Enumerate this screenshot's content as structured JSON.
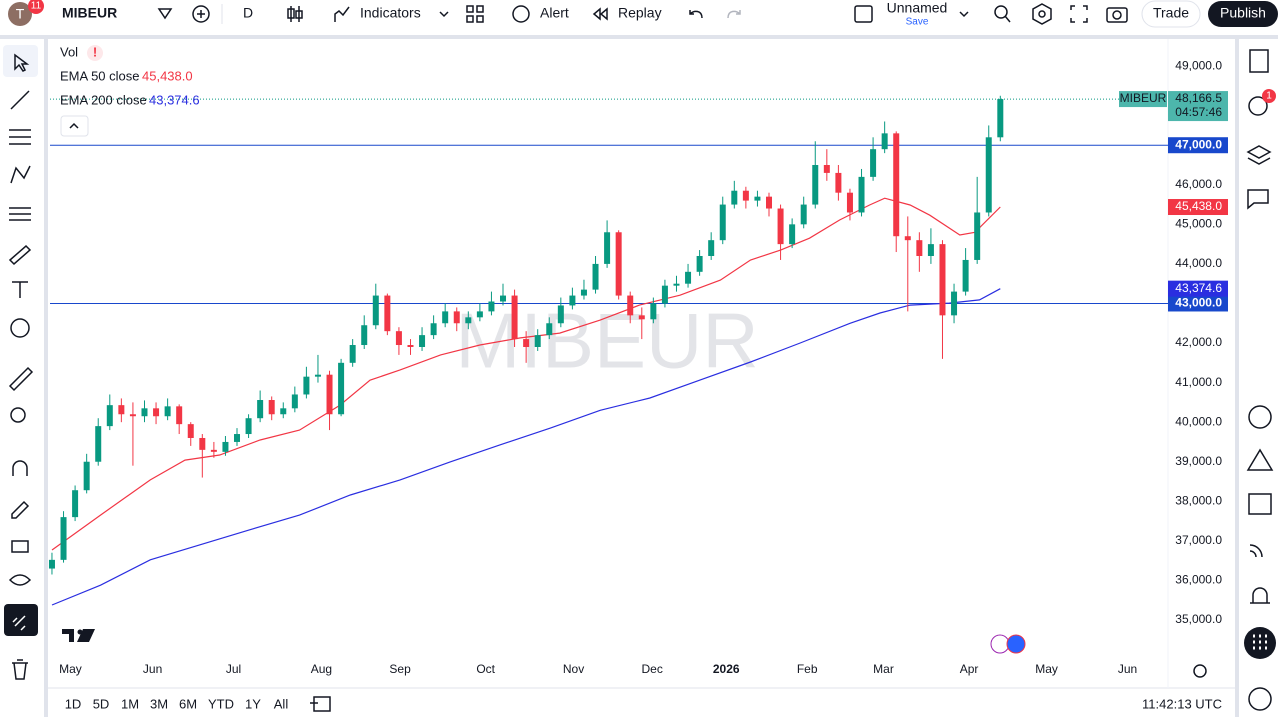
{
  "toolbar": {
    "avatar": "T",
    "badge": "11",
    "symbol": "MIBEUR",
    "interval": "D",
    "indicators": "Indicators",
    "alert": "Alert",
    "replay": "Replay",
    "layout_name": "Unnamed",
    "save": "Save",
    "trade": "Trade",
    "publish": "Publish",
    "notification_badge": "1"
  },
  "legend": {
    "vol": "Vol",
    "vol_warning": "!"
  },
  "bottom_bar": {
    "ranges": [
      "1D",
      "5D",
      "1M",
      "3M",
      "6M",
      "YTD",
      "1Y",
      "All"
    ],
    "clock": "11:42:13 UTC"
  },
  "chart_data": {
    "type": "candlestick",
    "watermark": "MIBEUR",
    "up_color": "#089981",
    "down_color": "#f23645",
    "candles": [
      [
        36300,
        36700,
        36150,
        36520
      ],
      [
        36520,
        37750,
        36450,
        37600
      ],
      [
        37600,
        38400,
        37500,
        38280
      ],
      [
        38280,
        39200,
        38200,
        39000
      ],
      [
        39000,
        40100,
        38900,
        39900
      ],
      [
        39900,
        40700,
        39800,
        40430
      ],
      [
        40430,
        40600,
        40000,
        40200
      ],
      [
        40200,
        40500,
        38900,
        40150
      ],
      [
        40150,
        40550,
        40000,
        40350
      ],
      [
        40350,
        40500,
        39950,
        40150
      ],
      [
        40150,
        40600,
        40050,
        40400
      ],
      [
        40400,
        40450,
        39700,
        39950
      ],
      [
        39950,
        40000,
        39400,
        39600
      ],
      [
        39600,
        39700,
        38600,
        39300
      ],
      [
        39300,
        39500,
        39100,
        39250
      ],
      [
        39250,
        39650,
        39150,
        39500
      ],
      [
        39500,
        39850,
        39400,
        39700
      ],
      [
        39700,
        40200,
        39600,
        40100
      ],
      [
        40100,
        40800,
        40000,
        40560
      ],
      [
        40560,
        40650,
        40050,
        40200
      ],
      [
        40200,
        40500,
        40100,
        40350
      ],
      [
        40350,
        40900,
        40250,
        40700
      ],
      [
        40700,
        41400,
        40600,
        41150
      ],
      [
        41150,
        41700,
        41000,
        41200
      ],
      [
        41200,
        41300,
        39800,
        40200
      ],
      [
        40200,
        41600,
        40150,
        41500
      ],
      [
        41500,
        42100,
        41400,
        41950
      ],
      [
        41950,
        42700,
        41850,
        42450
      ],
      [
        42450,
        43500,
        42350,
        43200
      ],
      [
        43200,
        43250,
        42200,
        42300
      ],
      [
        42300,
        42400,
        41700,
        41950
      ],
      [
        41950,
        42100,
        41700,
        41900
      ],
      [
        41900,
        42400,
        41800,
        42200
      ],
      [
        42200,
        42700,
        42100,
        42500
      ],
      [
        42500,
        43000,
        42400,
        42800
      ],
      [
        42800,
        42900,
        42300,
        42500
      ],
      [
        42500,
        42800,
        42350,
        42650
      ],
      [
        42650,
        43000,
        42550,
        42800
      ],
      [
        42800,
        43300,
        42700,
        43050
      ],
      [
        43050,
        43500,
        42950,
        43200
      ],
      [
        43200,
        43350,
        41900,
        42100
      ],
      [
        42100,
        42300,
        41500,
        41900
      ],
      [
        41900,
        42350,
        41800,
        42200
      ],
      [
        42200,
        42650,
        42100,
        42500
      ],
      [
        42500,
        43150,
        42400,
        42950
      ],
      [
        42950,
        43400,
        42850,
        43200
      ],
      [
        43200,
        43600,
        43100,
        43350
      ],
      [
        43350,
        44200,
        43250,
        44000
      ],
      [
        44000,
        45100,
        43900,
        44800
      ],
      [
        44800,
        44850,
        43100,
        43200
      ],
      [
        43200,
        43300,
        42500,
        42700
      ],
      [
        42700,
        42900,
        42100,
        42600
      ],
      [
        42600,
        43150,
        42500,
        43000
      ],
      [
        43000,
        43600,
        42900,
        43450
      ],
      [
        43450,
        43700,
        43300,
        43500
      ],
      [
        43500,
        44000,
        43400,
        43800
      ],
      [
        43800,
        44350,
        43700,
        44200
      ],
      [
        44200,
        44800,
        44100,
        44600
      ],
      [
        44600,
        45700,
        44500,
        45500
      ],
      [
        45500,
        46100,
        45400,
        45850
      ],
      [
        45850,
        45950,
        45400,
        45600
      ],
      [
        45600,
        45850,
        45450,
        45700
      ],
      [
        45700,
        45800,
        45200,
        45400
      ],
      [
        45400,
        45500,
        44100,
        44500
      ],
      [
        44500,
        45150,
        44400,
        45000
      ],
      [
        45000,
        45700,
        44900,
        45500
      ],
      [
        45500,
        47100,
        45400,
        46500
      ],
      [
        46500,
        46900,
        46100,
        46300
      ],
      [
        46300,
        46500,
        45600,
        45800
      ],
      [
        45800,
        45900,
        45100,
        45300
      ],
      [
        45300,
        46400,
        45200,
        46200
      ],
      [
        46200,
        47200,
        46100,
        46900
      ],
      [
        46900,
        47600,
        46800,
        47300
      ],
      [
        47300,
        47350,
        44300,
        44700
      ],
      [
        44700,
        45200,
        42800,
        44600
      ],
      [
        44600,
        44800,
        43800,
        44200
      ],
      [
        44200,
        44900,
        44000,
        44500
      ],
      [
        44500,
        44600,
        41600,
        42700
      ],
      [
        42700,
        43500,
        42500,
        43300
      ],
      [
        43300,
        44400,
        43200,
        44100
      ],
      [
        44100,
        46200,
        44000,
        45300
      ],
      [
        45300,
        47500,
        45200,
        47200
      ],
      [
        47200,
        48250,
        47100,
        48166.5
      ]
    ],
    "last_price_label": "48,166.5",
    "countdown": "04:57:46",
    "series": [
      {
        "name": "EMA 50 close",
        "color": "#f23645",
        "last_value_label": "45,438.0",
        "x": [
          0,
          4.2,
          8.5,
          11.5,
          14.5,
          18,
          21.4,
          24.9,
          27.5,
          30.1,
          33.6,
          37,
          40.5,
          43.9,
          47.4,
          50.8,
          54.3,
          57.8,
          60.4,
          63,
          65.5,
          68.1,
          70.7,
          72,
          74.2,
          75.9,
          78.5,
          79.8,
          82
        ],
        "values": [
          36770,
          37650,
          38540,
          39040,
          39170,
          39550,
          39800,
          40430,
          41060,
          41320,
          41700,
          41950,
          42130,
          42250,
          42580,
          42960,
          43210,
          43590,
          44100,
          44350,
          44650,
          45110,
          45490,
          45660,
          45490,
          45230,
          44730,
          44800,
          45438
        ]
      },
      {
        "name": "EMA 200 close",
        "color": "#2a2ee0",
        "last_value_label": "43,374.6",
        "x": [
          0,
          4.2,
          8.5,
          12.8,
          17.1,
          21.4,
          25.8,
          30.1,
          34.4,
          38.7,
          43.1,
          47.4,
          51.7,
          56,
          60.4,
          64.7,
          69,
          71.6,
          74.2,
          77.6,
          80.2,
          82
        ],
        "values": [
          35380,
          35880,
          36520,
          36900,
          37280,
          37650,
          38160,
          38540,
          38990,
          39420,
          39850,
          40300,
          40610,
          41060,
          41520,
          42000,
          42500,
          42760,
          42960,
          43010,
          43090,
          43374.6
        ]
      }
    ],
    "hlines": [
      {
        "value": 47000,
        "label": "47,000.0"
      },
      {
        "value": 43000,
        "label": "43,000.0"
      }
    ],
    "hline_color": "#1848cc",
    "xlim": [
      -0.17,
      96.5
    ],
    "xticks": [
      {
        "value": 1.6,
        "label": "May"
      },
      {
        "value": 8.7,
        "label": "Jun"
      },
      {
        "value": 15.7,
        "label": "Jul"
      },
      {
        "value": 23.3,
        "label": "Aug"
      },
      {
        "value": 30.1,
        "label": "Sep"
      },
      {
        "value": 37.5,
        "label": "Oct"
      },
      {
        "value": 45.1,
        "label": "Nov"
      },
      {
        "value": 51.9,
        "label": "Dec"
      },
      {
        "value": 58.3,
        "label": "2026",
        "bold": true
      },
      {
        "value": 65.3,
        "label": "Feb"
      },
      {
        "value": 71.9,
        "label": "Mar"
      },
      {
        "value": 79.3,
        "label": "Apr"
      },
      {
        "value": 86,
        "label": "May"
      },
      {
        "value": 93,
        "label": "Jun"
      }
    ],
    "ylim": [
      34115,
      49710
    ],
    "yticks": [
      {
        "value": 35000,
        "label": "35,000.0"
      },
      {
        "value": 36000,
        "label": "36,000.0"
      },
      {
        "value": 37000,
        "label": "37,000.0"
      },
      {
        "value": 38000,
        "label": "38,000.0"
      },
      {
        "value": 39000,
        "label": "39,000.0"
      },
      {
        "value": 40000,
        "label": "40,000.0"
      },
      {
        "value": 41000,
        "label": "41,000.0"
      },
      {
        "value": 42000,
        "label": "42,000.0"
      },
      {
        "value": 43000,
        "label": "43,000.0"
      },
      {
        "value": 44000,
        "label": "44,000.0"
      },
      {
        "value": 45000,
        "label": "45,000.0"
      },
      {
        "value": 46000,
        "label": "46,000.0"
      },
      {
        "value": 47000,
        "label": "47,000.0"
      },
      {
        "value": 48000,
        "label": "48,000.0"
      },
      {
        "value": 49000,
        "label": "49,000.0"
      }
    ],
    "grid": false
  }
}
